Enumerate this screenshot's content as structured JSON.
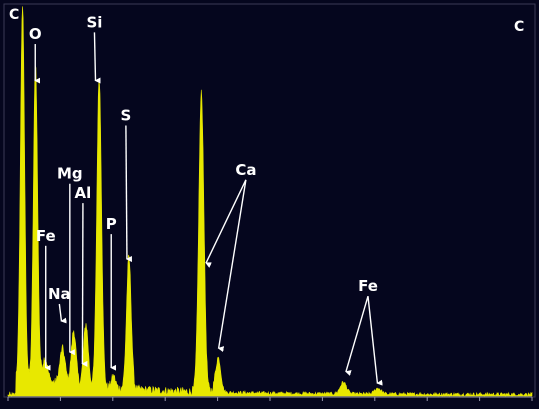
{
  "chart_data": {
    "type": "line",
    "title": "",
    "xlabel": "",
    "ylabel": "",
    "xlim": [
      0,
      10
    ],
    "ylim": [
      0,
      100
    ],
    "corner_labels": {
      "top_left": "C",
      "top_right": "C"
    },
    "colors": {
      "background": "#05061e",
      "spectrum": "#e8e800",
      "labels": "#ffffff",
      "frame": "#ffffff"
    },
    "series": [
      {
        "peaks": [
          {
            "x": 0.277,
            "height": 96,
            "width": 0.04
          },
          {
            "x": 0.525,
            "height": 82,
            "width": 0.04
          },
          {
            "x": 0.705,
            "height": 6,
            "width": 0.05
          },
          {
            "x": 1.04,
            "height": 9,
            "width": 0.05
          },
          {
            "x": 1.254,
            "height": 14,
            "width": 0.045
          },
          {
            "x": 1.487,
            "height": 16,
            "width": 0.045
          },
          {
            "x": 1.74,
            "height": 80,
            "width": 0.045
          },
          {
            "x": 2.013,
            "height": 3,
            "width": 0.04
          },
          {
            "x": 2.307,
            "height": 34,
            "width": 0.045
          },
          {
            "x": 3.69,
            "height": 77,
            "width": 0.05
          },
          {
            "x": 4.01,
            "height": 9,
            "width": 0.05
          },
          {
            "x": 6.4,
            "height": 3,
            "width": 0.06
          },
          {
            "x": 7.06,
            "height": 1.5,
            "width": 0.06
          }
        ]
      }
    ],
    "annotations": [
      {
        "label": "O",
        "lx": 0.52,
        "ly": 92,
        "targets": [
          {
            "x": 0.52,
            "y": 80
          }
        ]
      },
      {
        "label": "Si",
        "lx": 1.65,
        "ly": 95,
        "targets": [
          {
            "x": 1.67,
            "y": 80
          }
        ]
      },
      {
        "label": "S",
        "lx": 2.25,
        "ly": 71,
        "targets": [
          {
            "x": 2.27,
            "y": 34
          }
        ]
      },
      {
        "label": "Mg",
        "lx": 1.18,
        "ly": 56,
        "targets": [
          {
            "x": 1.18,
            "y": 10
          }
        ]
      },
      {
        "label": "Al",
        "lx": 1.43,
        "ly": 51,
        "targets": [
          {
            "x": 1.42,
            "y": 7
          }
        ]
      },
      {
        "label": "Fe",
        "lx": 0.72,
        "ly": 40,
        "targets": [
          {
            "x": 0.72,
            "y": 6
          }
        ]
      },
      {
        "label": "P",
        "lx": 1.97,
        "ly": 43,
        "targets": [
          {
            "x": 1.97,
            "y": 6
          }
        ]
      },
      {
        "label": "Na",
        "lx": 0.98,
        "ly": 25,
        "targets": [
          {
            "x": 1.02,
            "y": 18
          }
        ]
      },
      {
        "label": "Ca",
        "lx": 4.54,
        "ly": 57,
        "targets": [
          {
            "x": 3.78,
            "y": 33
          },
          {
            "x": 4.02,
            "y": 11
          }
        ]
      },
      {
        "label": "Fe",
        "lx": 6.87,
        "ly": 27,
        "targets": [
          {
            "x": 6.45,
            "y": 5
          },
          {
            "x": 7.05,
            "y": 2
          }
        ]
      }
    ]
  }
}
